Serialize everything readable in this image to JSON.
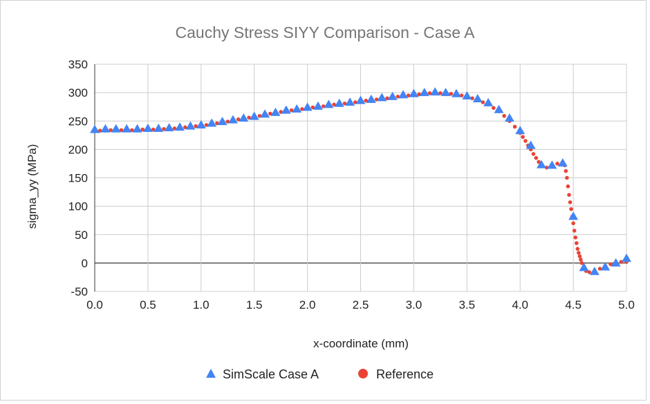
{
  "chart_data": {
    "type": "scatter",
    "title": "Cauchy Stress SIYY Comparison - Case A",
    "xlabel": "x-coordinate (mm)",
    "ylabel": "sigma_yy (MPa)",
    "xlim": [
      0,
      5
    ],
    "ylim": [
      -50,
      350
    ],
    "xticks": [
      "0.0",
      "0.5",
      "1.0",
      "1.5",
      "2.0",
      "2.5",
      "3.0",
      "3.5",
      "4.0",
      "4.5",
      "5.0"
    ],
    "yticks": [
      "350",
      "300",
      "250",
      "200",
      "150",
      "100",
      "50",
      "0",
      "-50"
    ],
    "grid": true,
    "legend_position": "bottom",
    "series": [
      {
        "name": "SimScale Case A",
        "marker": "triangle",
        "color": "#4285f4",
        "x": [
          0,
          0.1,
          0.2,
          0.3,
          0.4,
          0.5,
          0.6,
          0.7,
          0.8,
          0.9,
          1.0,
          1.1,
          1.2,
          1.3,
          1.4,
          1.5,
          1.6,
          1.7,
          1.8,
          1.9,
          2.0,
          2.1,
          2.2,
          2.3,
          2.4,
          2.5,
          2.6,
          2.7,
          2.8,
          2.9,
          3.0,
          3.1,
          3.2,
          3.3,
          3.4,
          3.5,
          3.6,
          3.7,
          3.8,
          3.9,
          4.0,
          4.1,
          4.2,
          4.3,
          4.4,
          4.5,
          4.6,
          4.7,
          4.8,
          4.9,
          5.0
        ],
        "y": [
          235,
          236,
          236,
          236,
          236,
          237,
          237,
          238,
          239,
          241,
          243,
          246,
          249,
          252,
          255,
          258,
          262,
          265,
          269,
          271,
          274,
          276,
          279,
          281,
          283,
          286,
          288,
          291,
          293,
          296,
          298,
          300,
          301,
          300,
          298,
          294,
          289,
          282,
          270,
          255,
          233,
          207,
          173,
          172,
          176,
          82,
          -8,
          -15,
          -7,
          0,
          8
        ]
      },
      {
        "name": "Reference",
        "marker": "circle",
        "color": "#ea4335",
        "x": [
          0,
          0.05,
          0.1,
          0.15,
          0.2,
          0.25,
          0.3,
          0.35,
          0.4,
          0.45,
          0.5,
          0.55,
          0.6,
          0.65,
          0.7,
          0.75,
          0.8,
          0.85,
          0.9,
          0.95,
          1.0,
          1.05,
          1.1,
          1.15,
          1.2,
          1.25,
          1.3,
          1.35,
          1.4,
          1.45,
          1.5,
          1.55,
          1.6,
          1.65,
          1.7,
          1.75,
          1.8,
          1.85,
          1.9,
          1.95,
          2.0,
          2.05,
          2.1,
          2.15,
          2.2,
          2.25,
          2.3,
          2.35,
          2.4,
          2.45,
          2.5,
          2.55,
          2.6,
          2.65,
          2.7,
          2.75,
          2.8,
          2.85,
          2.9,
          2.95,
          3.0,
          3.05,
          3.1,
          3.15,
          3.2,
          3.25,
          3.3,
          3.35,
          3.4,
          3.45,
          3.5,
          3.55,
          3.6,
          3.65,
          3.7,
          3.75,
          3.8,
          3.85,
          3.9,
          3.95,
          4.0,
          4.025,
          4.05,
          4.075,
          4.1,
          4.125,
          4.15,
          4.175,
          4.2,
          4.25,
          4.3,
          4.35,
          4.4,
          4.42,
          4.43,
          4.44,
          4.45,
          4.46,
          4.47,
          4.48,
          4.49,
          4.5,
          4.51,
          4.52,
          4.53,
          4.54,
          4.55,
          4.56,
          4.57,
          4.58,
          4.6,
          4.62,
          4.65,
          4.7,
          4.75,
          4.8,
          4.85,
          4.9,
          4.95,
          5.0
        ],
        "y": [
          233,
          233,
          233,
          234,
          234,
          234,
          234,
          234,
          235,
          235,
          235,
          235,
          236,
          236,
          236,
          237,
          238,
          239,
          240,
          241,
          242,
          243,
          245,
          246,
          248,
          249,
          251,
          253,
          254,
          256,
          257,
          259,
          261,
          263,
          264,
          266,
          268,
          269,
          270,
          271,
          273,
          274,
          275,
          276,
          278,
          279,
          280,
          281,
          282,
          283,
          285,
          286,
          287,
          288,
          289,
          290,
          292,
          293,
          294,
          295,
          296,
          297,
          298,
          299,
          299,
          299,
          299,
          298,
          297,
          295,
          293,
          290,
          287,
          283,
          279,
          273,
          267,
          259,
          250,
          240,
          229,
          222,
          215,
          207,
          200,
          192,
          185,
          178,
          173,
          168,
          170,
          175,
          178,
          172,
          162,
          150,
          135,
          120,
          107,
          95,
          82,
          70,
          57,
          45,
          35,
          25,
          18,
          12,
          6,
          0,
          -8,
          -14,
          -16,
          -15,
          -10,
          -5,
          -2,
          0,
          2,
          2
        ]
      }
    ]
  }
}
